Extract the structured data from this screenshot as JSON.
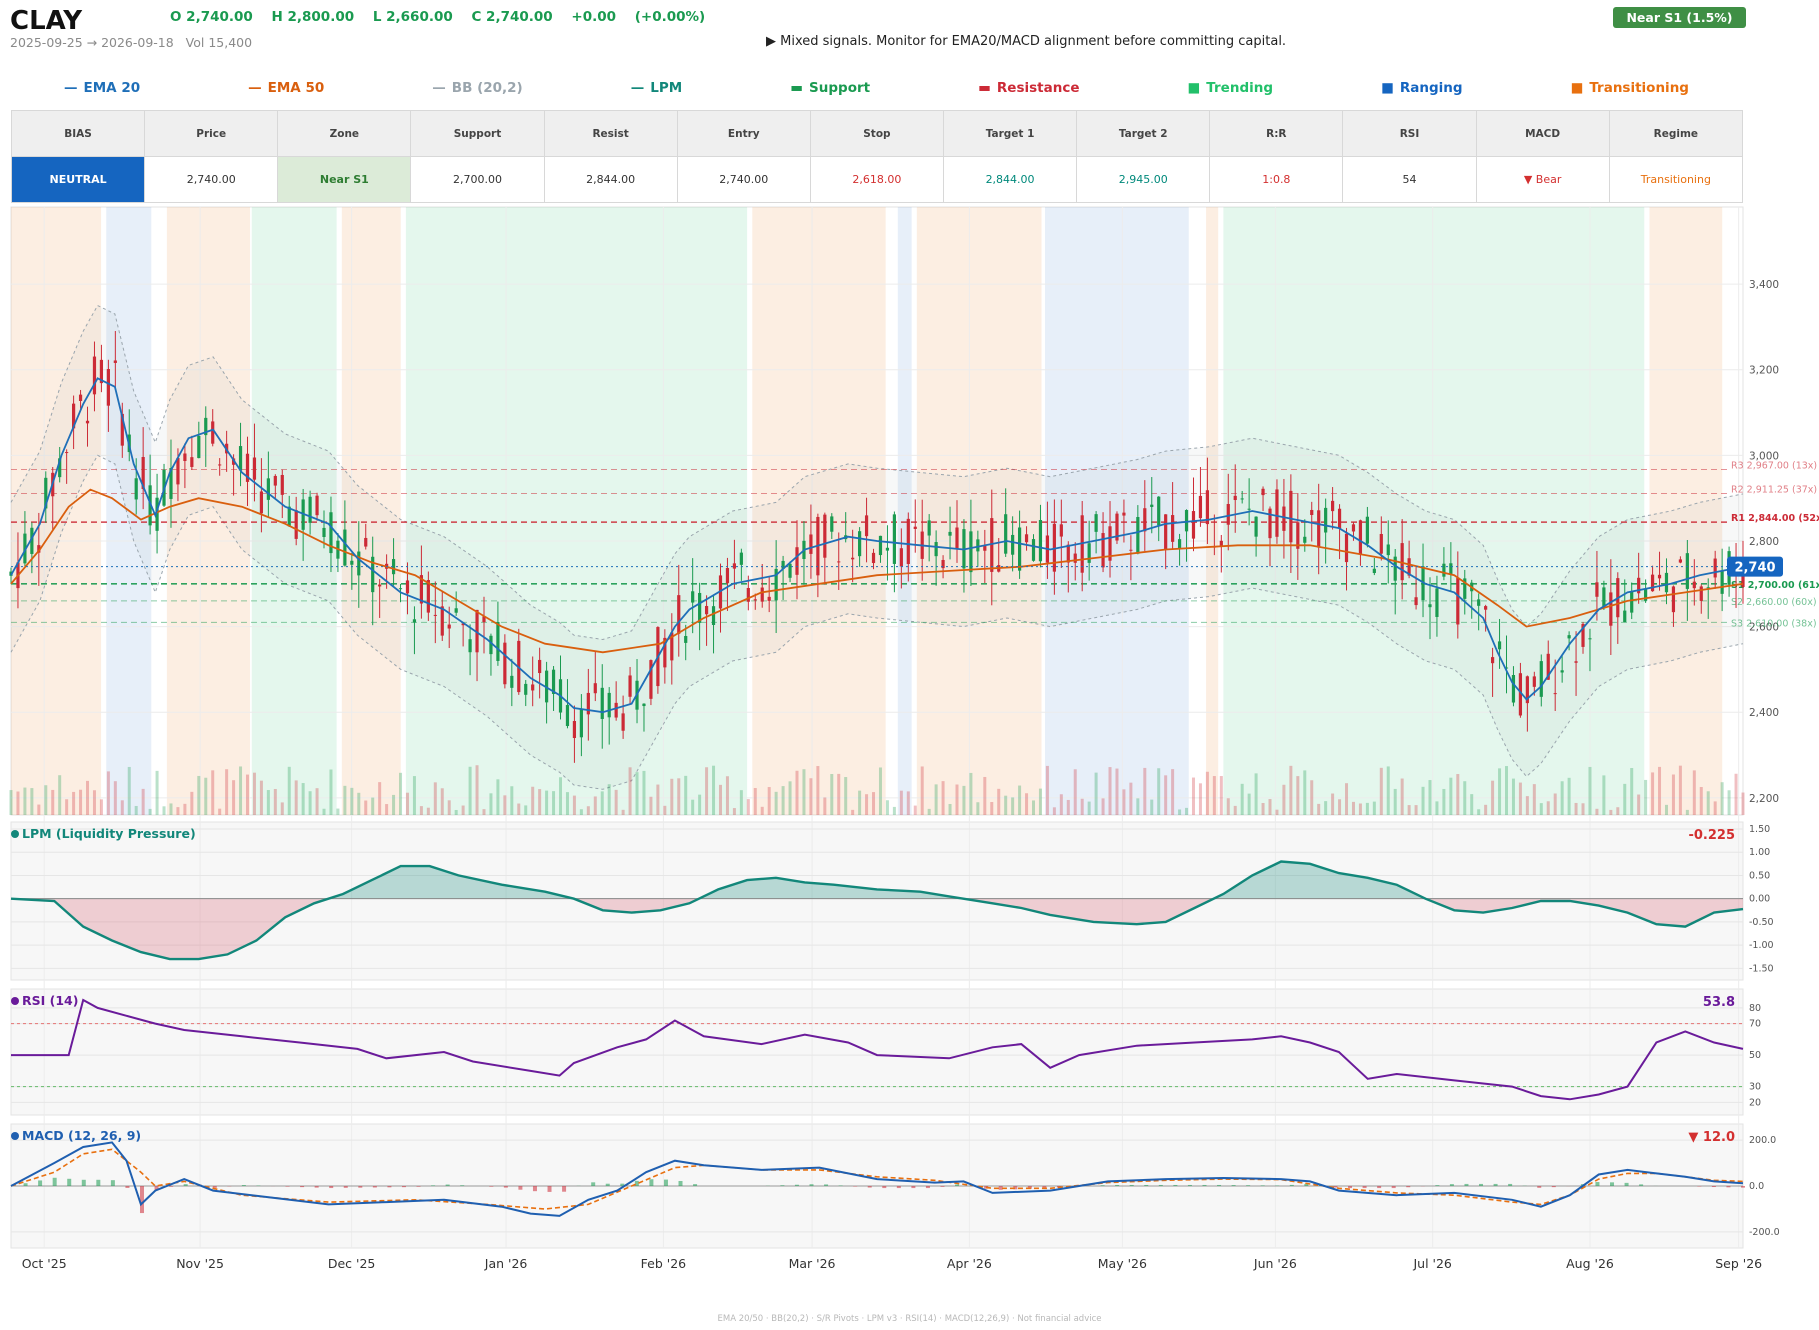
{
  "header": {
    "ticker": "CLAY",
    "ohlc": [
      "O 2,740.00",
      "H 2,800.00",
      "L 2,660.00",
      "C 2,740.00",
      "+0.00",
      "(+0.00%)"
    ],
    "range": "2025-09-25 → 2026-09-18",
    "volume": "Vol 15,400",
    "signal": "▶  Mixed signals. Monitor for EMA20/MACD alignment before committing capital.",
    "badge": "Near S1  (1.5%)"
  },
  "legend": [
    {
      "glyph": "—",
      "label": "EMA 20",
      "color": "#1f6fb8"
    },
    {
      "glyph": "—",
      "label": "EMA 50",
      "color": "#d95f0e"
    },
    {
      "glyph": "—",
      "label": "BB (20,2)",
      "color": "#9aa5ad"
    },
    {
      "glyph": "—",
      "label": "LPM",
      "color": "#12877a"
    },
    {
      "glyph": "▬",
      "label": "Support",
      "color": "#1a9a50"
    },
    {
      "glyph": "▬",
      "label": "Resistance",
      "color": "#cc2a36"
    },
    {
      "glyph": "■",
      "label": "Trending",
      "color": "#22c06a"
    },
    {
      "glyph": "■",
      "label": "Ranging",
      "color": "#1565c0"
    },
    {
      "glyph": "■",
      "label": "Transitioning",
      "color": "#e8700f"
    }
  ],
  "table": {
    "headers": [
      "BIAS",
      "Price",
      "Zone",
      "Support",
      "Resist",
      "Entry",
      "Stop",
      "Target 1",
      "Target 2",
      "R:R",
      "RSI",
      "MACD",
      "Regime"
    ],
    "values": [
      "NEUTRAL",
      "2,740.00",
      "Near S1",
      "2,700.00",
      "2,844.00",
      "2,740.00",
      "2,618.00",
      "2,844.00",
      "2,945.00",
      "1:0.8",
      "54",
      "▼ Bear",
      "Transitioning"
    ],
    "colors": {
      "bias_bg": "#1565c0",
      "zone_bg": "#dcebd8",
      "zone_fg": "#2e7d32",
      "stop": "#d32f2f",
      "target": "#00897b",
      "rr": "#d32f2f",
      "macd": "#d32f2f",
      "regime": "#e8700f"
    }
  },
  "colors": {
    "up": "#1a9a50",
    "down": "#cc2a36",
    "ema20": "#1f6fb8",
    "ema50": "#d95f0e",
    "bb": "#9aa5ad",
    "lpm": "#12877a",
    "rsi": "#6a1b9a",
    "macd": "#1f5fb0",
    "signal": "#e8700f"
  },
  "footer": "EMA 20/50  ·  BB(20,2)  ·  S/R Pivots  ·  LPM v3  ·  RSI(14)  ·  MACD(12,26,9)  ·  Not financial advice",
  "chart_data": {
    "type": "candlestick",
    "x_ticks": [
      "Oct '25",
      "Nov '25",
      "Dec '25",
      "Jan '26",
      "Feb '26",
      "Mar '26",
      "Apr '26",
      "May '26",
      "Jun '26",
      "Jul '26",
      "Aug '26",
      "Sep '26"
    ],
    "price_panel": {
      "ylim": [
        2160,
        3580
      ],
      "yticks": [
        "2,200",
        "2,400",
        "2,600",
        "2,800",
        "3,000",
        "3,200",
        "3,400"
      ],
      "last_price": "2,740",
      "levels": [
        {
          "label": "R3 2,967.00 (13x)",
          "value": 2967,
          "kind": "resistance"
        },
        {
          "label": "R2 2,911.25 (37x)",
          "value": 2911,
          "kind": "resistance"
        },
        {
          "label": "R1 2,844.00 (52x)",
          "value": 2844,
          "kind": "resistance"
        },
        {
          "label": "S1 2,700.00 (61x)",
          "value": 2700,
          "kind": "support"
        },
        {
          "label": "S2 2,660.00 (60x)",
          "value": 2660,
          "kind": "support"
        },
        {
          "label": "S3 2,610.00 (38x)",
          "value": 2610,
          "kind": "support"
        }
      ],
      "regimes": [
        {
          "from": 0.0,
          "to": 0.052,
          "kind": "transitioning"
        },
        {
          "from": 0.055,
          "to": 0.081,
          "kind": "ranging"
        },
        {
          "from": 0.09,
          "to": 0.138,
          "kind": "transitioning"
        },
        {
          "from": 0.139,
          "to": 0.188,
          "kind": "trending"
        },
        {
          "from": 0.191,
          "to": 0.225,
          "kind": "transitioning"
        },
        {
          "from": 0.228,
          "to": 0.425,
          "kind": "trending"
        },
        {
          "from": 0.428,
          "to": 0.505,
          "kind": "transitioning"
        },
        {
          "from": 0.512,
          "to": 0.52,
          "kind": "ranging"
        },
        {
          "from": 0.523,
          "to": 0.595,
          "kind": "transitioning"
        },
        {
          "from": 0.597,
          "to": 0.68,
          "kind": "ranging"
        },
        {
          "from": 0.69,
          "to": 0.697,
          "kind": "transitioning"
        },
        {
          "from": 0.7,
          "to": 0.943,
          "kind": "trending"
        },
        {
          "from": 0.946,
          "to": 0.988,
          "kind": "transitioning"
        }
      ],
      "ema20": [
        [
          0.0,
          2720
        ],
        [
          0.02,
          2840
        ],
        [
          0.035,
          3000
        ],
        [
          0.05,
          3120
        ],
        [
          0.06,
          3180
        ],
        [
          0.072,
          3160
        ],
        [
          0.085,
          2980
        ],
        [
          0.1,
          2860
        ],
        [
          0.11,
          2960
        ],
        [
          0.123,
          3040
        ],
        [
          0.14,
          3060
        ],
        [
          0.16,
          2960
        ],
        [
          0.19,
          2880
        ],
        [
          0.22,
          2840
        ],
        [
          0.24,
          2760
        ],
        [
          0.27,
          2680
        ],
        [
          0.3,
          2640
        ],
        [
          0.33,
          2570
        ],
        [
          0.36,
          2480
        ],
        [
          0.38,
          2440
        ],
        [
          0.39,
          2410
        ],
        [
          0.41,
          2400
        ],
        [
          0.43,
          2420
        ],
        [
          0.44,
          2480
        ],
        [
          0.46,
          2600
        ],
        [
          0.47,
          2640
        ],
        [
          0.5,
          2700
        ],
        [
          0.53,
          2720
        ],
        [
          0.55,
          2780
        ],
        [
          0.58,
          2810
        ],
        [
          0.6,
          2800
        ],
        [
          0.63,
          2790
        ],
        [
          0.66,
          2780
        ],
        [
          0.69,
          2800
        ],
        [
          0.72,
          2780
        ],
        [
          0.75,
          2800
        ],
        [
          0.78,
          2820
        ],
        [
          0.8,
          2840
        ],
        [
          0.83,
          2850
        ],
        [
          0.86,
          2870
        ],
        [
          0.89,
          2850
        ],
        [
          0.92,
          2830
        ],
        [
          0.94,
          2790
        ],
        [
          0.96,
          2740
        ],
        [
          0.98,
          2700
        ],
        [
          1.0,
          2680
        ],
        [
          1.02,
          2620
        ],
        [
          1.03,
          2540
        ],
        [
          1.04,
          2470
        ],
        [
          1.05,
          2430
        ],
        [
          1.06,
          2460
        ],
        [
          1.08,
          2560
        ],
        [
          1.1,
          2640
        ],
        [
          1.12,
          2680
        ],
        [
          1.15,
          2700
        ],
        [
          1.17,
          2720
        ],
        [
          1.2,
          2740
        ]
      ],
      "ema50": [
        [
          0.0,
          2700
        ],
        [
          0.02,
          2780
        ],
        [
          0.04,
          2880
        ],
        [
          0.055,
          2920
        ],
        [
          0.07,
          2900
        ],
        [
          0.09,
          2850
        ],
        [
          0.11,
          2880
        ],
        [
          0.13,
          2900
        ],
        [
          0.16,
          2880
        ],
        [
          0.19,
          2840
        ],
        [
          0.22,
          2790
        ],
        [
          0.25,
          2750
        ],
        [
          0.28,
          2720
        ],
        [
          0.31,
          2660
        ],
        [
          0.34,
          2600
        ],
        [
          0.37,
          2560
        ],
        [
          0.41,
          2540
        ],
        [
          0.45,
          2560
        ],
        [
          0.48,
          2620
        ],
        [
          0.52,
          2680
        ],
        [
          0.56,
          2700
        ],
        [
          0.6,
          2720
        ],
        [
          0.65,
          2730
        ],
        [
          0.7,
          2740
        ],
        [
          0.75,
          2760
        ],
        [
          0.8,
          2780
        ],
        [
          0.85,
          2790
        ],
        [
          0.9,
          2790
        ],
        [
          0.95,
          2760
        ],
        [
          1.0,
          2720
        ],
        [
          1.03,
          2650
        ],
        [
          1.05,
          2600
        ],
        [
          1.08,
          2620
        ],
        [
          1.12,
          2660
        ],
        [
          1.16,
          2680
        ],
        [
          1.2,
          2700
        ]
      ]
    },
    "lpm_panel": {
      "title": "LPM (Liquidity Pressure)",
      "value": "-0.225",
      "yticks": [
        "1.50",
        "1.00",
        "0.50",
        "0.00",
        "-0.50",
        "-1.00",
        "-1.50"
      ],
      "ylim": [
        -1.75,
        1.65
      ],
      "series": [
        [
          0.0,
          0.0
        ],
        [
          0.03,
          -0.05
        ],
        [
          0.05,
          -0.6
        ],
        [
          0.07,
          -0.9
        ],
        [
          0.09,
          -1.15
        ],
        [
          0.11,
          -1.3
        ],
        [
          0.13,
          -1.3
        ],
        [
          0.15,
          -1.2
        ],
        [
          0.17,
          -0.9
        ],
        [
          0.19,
          -0.4
        ],
        [
          0.21,
          -0.1
        ],
        [
          0.23,
          0.1
        ],
        [
          0.25,
          0.4
        ],
        [
          0.27,
          0.7
        ],
        [
          0.29,
          0.7
        ],
        [
          0.31,
          0.5
        ],
        [
          0.34,
          0.3
        ],
        [
          0.37,
          0.15
        ],
        [
          0.39,
          0.0
        ],
        [
          0.41,
          -0.25
        ],
        [
          0.43,
          -0.3
        ],
        [
          0.45,
          -0.25
        ],
        [
          0.47,
          -0.1
        ],
        [
          0.49,
          0.2
        ],
        [
          0.51,
          0.4
        ],
        [
          0.53,
          0.45
        ],
        [
          0.55,
          0.35
        ],
        [
          0.57,
          0.3
        ],
        [
          0.6,
          0.2
        ],
        [
          0.63,
          0.15
        ],
        [
          0.65,
          0.05
        ],
        [
          0.68,
          -0.1
        ],
        [
          0.7,
          -0.2
        ],
        [
          0.72,
          -0.35
        ],
        [
          0.75,
          -0.5
        ],
        [
          0.78,
          -0.55
        ],
        [
          0.8,
          -0.5
        ],
        [
          0.82,
          -0.2
        ],
        [
          0.84,
          0.1
        ],
        [
          0.86,
          0.5
        ],
        [
          0.88,
          0.8
        ],
        [
          0.9,
          0.75
        ],
        [
          0.92,
          0.55
        ],
        [
          0.94,
          0.45
        ],
        [
          0.96,
          0.3
        ],
        [
          0.98,
          0.0
        ],
        [
          1.0,
          -0.25
        ],
        [
          1.02,
          -0.3
        ],
        [
          1.04,
          -0.2
        ],
        [
          1.06,
          -0.05
        ],
        [
          1.08,
          -0.05
        ],
        [
          1.1,
          -0.15
        ],
        [
          1.12,
          -0.3
        ],
        [
          1.14,
          -0.55
        ],
        [
          1.16,
          -0.6
        ],
        [
          1.18,
          -0.3
        ],
        [
          1.2,
          -0.225
        ]
      ]
    },
    "rsi_panel": {
      "title": "RSI (14)",
      "value": "53.8",
      "yticks": [
        "80",
        "70",
        "50",
        "30",
        "20"
      ],
      "ylim": [
        12,
        92
      ],
      "series": [
        [
          0.0,
          50
        ],
        [
          0.04,
          50
        ],
        [
          0.05,
          85
        ],
        [
          0.06,
          80
        ],
        [
          0.08,
          75
        ],
        [
          0.1,
          70
        ],
        [
          0.12,
          66
        ],
        [
          0.16,
          62
        ],
        [
          0.2,
          58
        ],
        [
          0.24,
          54
        ],
        [
          0.26,
          48
        ],
        [
          0.3,
          52
        ],
        [
          0.32,
          46
        ],
        [
          0.36,
          40
        ],
        [
          0.38,
          37
        ],
        [
          0.39,
          45
        ],
        [
          0.42,
          55
        ],
        [
          0.44,
          60
        ],
        [
          0.46,
          72
        ],
        [
          0.48,
          62
        ],
        [
          0.52,
          57
        ],
        [
          0.55,
          63
        ],
        [
          0.58,
          58
        ],
        [
          0.6,
          50
        ],
        [
          0.65,
          48
        ],
        [
          0.68,
          55
        ],
        [
          0.7,
          57
        ],
        [
          0.72,
          42
        ],
        [
          0.74,
          50
        ],
        [
          0.78,
          56
        ],
        [
          0.82,
          58
        ],
        [
          0.86,
          60
        ],
        [
          0.88,
          62
        ],
        [
          0.9,
          58
        ],
        [
          0.92,
          52
        ],
        [
          0.94,
          35
        ],
        [
          0.96,
          38
        ],
        [
          1.0,
          34
        ],
        [
          1.02,
          32
        ],
        [
          1.04,
          30
        ],
        [
          1.06,
          24
        ],
        [
          1.08,
          22
        ],
        [
          1.1,
          25
        ],
        [
          1.12,
          30
        ],
        [
          1.14,
          58
        ],
        [
          1.16,
          65
        ],
        [
          1.18,
          58
        ],
        [
          1.2,
          54
        ]
      ]
    },
    "macd_panel": {
      "title": "MACD (12, 26, 9)",
      "value": "▼ 12.0",
      "yticks": [
        "200.0",
        "0.0",
        "-200.0"
      ],
      "ylim": [
        -270,
        270
      ],
      "macd": [
        [
          0.0,
          0
        ],
        [
          0.03,
          100
        ],
        [
          0.05,
          170
        ],
        [
          0.07,
          190
        ],
        [
          0.08,
          110
        ],
        [
          0.09,
          -80
        ],
        [
          0.1,
          -20
        ],
        [
          0.12,
          30
        ],
        [
          0.14,
          -20
        ],
        [
          0.18,
          -50
        ],
        [
          0.22,
          -80
        ],
        [
          0.26,
          -70
        ],
        [
          0.3,
          -60
        ],
        [
          0.34,
          -90
        ],
        [
          0.36,
          -120
        ],
        [
          0.38,
          -130
        ],
        [
          0.4,
          -60
        ],
        [
          0.42,
          -20
        ],
        [
          0.44,
          60
        ],
        [
          0.46,
          110
        ],
        [
          0.48,
          90
        ],
        [
          0.52,
          70
        ],
        [
          0.56,
          80
        ],
        [
          0.6,
          30
        ],
        [
          0.64,
          15
        ],
        [
          0.66,
          20
        ],
        [
          0.68,
          -30
        ],
        [
          0.72,
          -20
        ],
        [
          0.76,
          20
        ],
        [
          0.8,
          30
        ],
        [
          0.84,
          35
        ],
        [
          0.88,
          30
        ],
        [
          0.9,
          20
        ],
        [
          0.92,
          -20
        ],
        [
          0.96,
          -40
        ],
        [
          1.0,
          -30
        ],
        [
          1.04,
          -60
        ],
        [
          1.06,
          -90
        ],
        [
          1.08,
          -40
        ],
        [
          1.1,
          50
        ],
        [
          1.12,
          70
        ],
        [
          1.14,
          55
        ],
        [
          1.16,
          40
        ],
        [
          1.18,
          20
        ],
        [
          1.2,
          12
        ]
      ],
      "signal": [
        [
          0.0,
          0
        ],
        [
          0.03,
          60
        ],
        [
          0.05,
          140
        ],
        [
          0.07,
          160
        ],
        [
          0.09,
          60
        ],
        [
          0.1,
          0
        ],
        [
          0.12,
          20
        ],
        [
          0.16,
          -40
        ],
        [
          0.22,
          -70
        ],
        [
          0.28,
          -60
        ],
        [
          0.33,
          -80
        ],
        [
          0.37,
          -100
        ],
        [
          0.4,
          -80
        ],
        [
          0.43,
          0
        ],
        [
          0.46,
          80
        ],
        [
          0.48,
          90
        ],
        [
          0.52,
          70
        ],
        [
          0.56,
          70
        ],
        [
          0.6,
          40
        ],
        [
          0.64,
          25
        ],
        [
          0.68,
          -10
        ],
        [
          0.72,
          -10
        ],
        [
          0.76,
          15
        ],
        [
          0.8,
          25
        ],
        [
          0.84,
          30
        ],
        [
          0.88,
          28
        ],
        [
          0.92,
          -10
        ],
        [
          0.96,
          -30
        ],
        [
          1.0,
          -40
        ],
        [
          1.04,
          -70
        ],
        [
          1.06,
          -80
        ],
        [
          1.08,
          -40
        ],
        [
          1.1,
          30
        ],
        [
          1.12,
          55
        ],
        [
          1.14,
          55
        ],
        [
          1.16,
          40
        ],
        [
          1.18,
          25
        ],
        [
          1.2,
          20
        ]
      ]
    }
  }
}
